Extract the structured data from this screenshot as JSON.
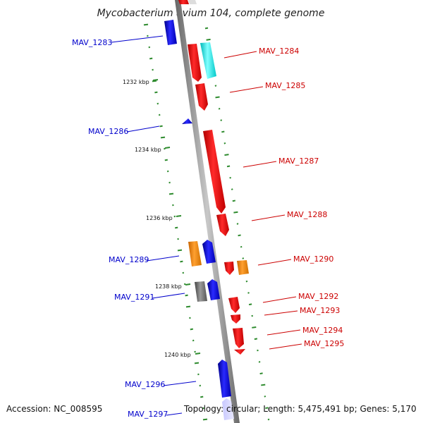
{
  "title": "Mycobacterium avium 104, complete genome",
  "footer": {
    "accession": "Accession: NC_008595",
    "topology": "Topology: circular; Length: 5,475,491 bp; Genes: 5,170"
  },
  "colors": {
    "blue": "#0000ff",
    "red": "#ff0000",
    "orange": "#ff8c00",
    "cyan": "#00ffff",
    "gray": "#666666",
    "gc_ticks": "#2e8b2e",
    "backbone": "#888888",
    "label_blue": "#0000cc",
    "label_red": "#cc0000"
  },
  "ticks": [
    {
      "label": "1232 kbp"
    },
    {
      "label": "1234 kbp"
    },
    {
      "label": "1236 kbp"
    },
    {
      "label": "1238 kbp"
    },
    {
      "label": "1240 kbp"
    }
  ],
  "gene_labels": [
    {
      "label": "MAV_1283",
      "side": "left"
    },
    {
      "label": "MAV_1284",
      "side": "right"
    },
    {
      "label": "MAV_1285",
      "side": "right"
    },
    {
      "label": "MAV_1286",
      "side": "left"
    },
    {
      "label": "MAV_1287",
      "side": "right"
    },
    {
      "label": "MAV_1288",
      "side": "right"
    },
    {
      "label": "MAV_1289",
      "side": "left"
    },
    {
      "label": "MAV_1290",
      "side": "right"
    },
    {
      "label": "MAV_1291",
      "side": "left"
    },
    {
      "label": "MAV_1292",
      "side": "right"
    },
    {
      "label": "MAV_1293",
      "side": "right"
    },
    {
      "label": "MAV_1294",
      "side": "right"
    },
    {
      "label": "MAV_1295",
      "side": "right"
    },
    {
      "label": "MAV_1296",
      "side": "left"
    },
    {
      "label": "MAV_1297",
      "side": "left"
    }
  ]
}
